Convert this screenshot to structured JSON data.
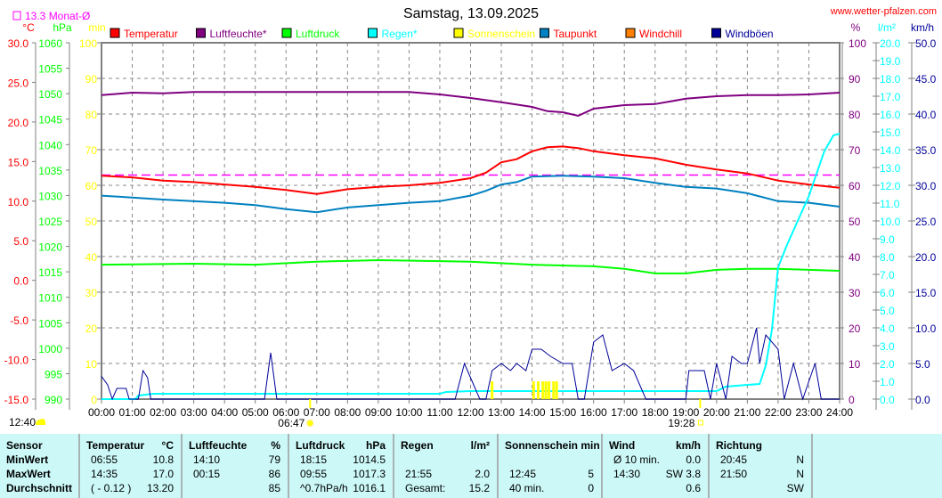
{
  "header": {
    "title": "Samstag, 13.09.2025",
    "site": "www.wetter-pfalzen.com",
    "month_avg_label": "13.3 Monat-Ø",
    "sunrise": "06:47",
    "sunset": "19:28",
    "cloud_time": "12:40"
  },
  "colors": {
    "Temperatur": "#ff0000",
    "Luftfeuchte": "#800080",
    "Luftdruck": "#00ff00",
    "Regen": "#00ffff",
    "Sonnenschein": "#ffff00",
    "Taupunkt": "#0080c0",
    "Windchill": "#ff8000",
    "Windböen": "#000099",
    "month_avg": "#ff00ff"
  },
  "chart_data": {
    "type": "line",
    "title": "Samstag, 13.09.2025",
    "legend": [
      {
        "name": "Temperatur",
        "text_color": "#ff0000",
        "box": "#ff0000"
      },
      {
        "name": "Luftfeuchte*",
        "text_color": "#800080",
        "box": "#800080"
      },
      {
        "name": "Luftdruck",
        "text_color": "#00ff00",
        "box": "#00ff00"
      },
      {
        "name": "Regen*",
        "text_color": "#00ffff",
        "box": "#00ffff"
      },
      {
        "name": "Sonnenschein",
        "text_color": "#ffff00",
        "box": "#ffff00"
      },
      {
        "name": "Taupunkt",
        "text_color": "#ff0000",
        "box": "#0080c0"
      },
      {
        "name": "Windchill",
        "text_color": "#ff0000",
        "box": "#ff8000"
      },
      {
        "name": "Windböen",
        "text_color": "#000099",
        "box": "#000099"
      }
    ],
    "legend_placement": "top",
    "x_ticks": [
      "00:00",
      "01:00",
      "02:00",
      "03:00",
      "04:00",
      "05:00",
      "06:00",
      "07:00",
      "08:00",
      "09:00",
      "10:00",
      "11:00",
      "12:00",
      "13:00",
      "14:00",
      "15:00",
      "16:00",
      "17:00",
      "18:00",
      "19:00",
      "20:00",
      "21:00",
      "22:00",
      "23:00",
      "24:00"
    ],
    "xlim": [
      0,
      24
    ],
    "axes": {
      "celsius": {
        "unit": "°C",
        "range": [
          -15,
          30
        ],
        "ticks": [
          "30.0",
          "25.0",
          "20.0",
          "15.0",
          "10.0",
          "5.0",
          "0.0",
          "-5.0",
          "-10.0",
          "-15.0"
        ],
        "color": "#ff0000"
      },
      "hpa": {
        "unit": "hPa",
        "range": [
          990,
          1060
        ],
        "ticks": [
          "1060",
          "1055",
          "1050",
          "1045",
          "1040",
          "1035",
          "1030",
          "1025",
          "1020",
          "1015",
          "1010",
          "1005",
          "1000",
          "995",
          "990"
        ],
        "color": "#00ff00"
      },
      "min": {
        "unit": "min",
        "range": [
          0,
          100
        ],
        "ticks": [
          "100",
          "90",
          "80",
          "70",
          "60",
          "50",
          "40",
          "30",
          "20",
          "10",
          "0"
        ],
        "color": "#ffff00"
      },
      "percent": {
        "unit": "%",
        "range": [
          0,
          100
        ],
        "ticks": [
          "100",
          "90",
          "80",
          "70",
          "60",
          "50",
          "40",
          "30",
          "20",
          "10",
          "0"
        ],
        "color": "#800080"
      },
      "rain": {
        "unit": "l/m²",
        "range": [
          0,
          20
        ],
        "ticks": [
          "20.0",
          "19.0",
          "18.0",
          "17.0",
          "16.0",
          "15.0",
          "14.0",
          "13.0",
          "12.0",
          "11.0",
          "10.0",
          "9.0",
          "8.0",
          "7.0",
          "6.0",
          "5.0",
          "4.0",
          "3.0",
          "2.0",
          "1.0",
          "0.0"
        ],
        "color": "#00ffff"
      },
      "kmh": {
        "unit": "km/h",
        "range": [
          0,
          50
        ],
        "ticks": [
          "50.0",
          "45.0",
          "40.0",
          "35.0",
          "30.0",
          "25.0",
          "20.0",
          "15.0",
          "10.0",
          "5.0",
          "0.0"
        ],
        "color": "#000099"
      }
    },
    "grid": true,
    "month_avg_temp": 13.3,
    "series": [
      {
        "name": "Temperatur",
        "axis": "celsius",
        "color": "#ff0000",
        "x": [
          0,
          1,
          2,
          3,
          4,
          5,
          6,
          7,
          8,
          9,
          10,
          11,
          12,
          12.5,
          13,
          13.5,
          14,
          14.5,
          15,
          15.5,
          16,
          17,
          18,
          19,
          20,
          21,
          22,
          23,
          24
        ],
        "y": [
          13.2,
          13.0,
          12.6,
          12.4,
          12.1,
          11.8,
          11.4,
          10.9,
          11.5,
          11.8,
          12.0,
          12.3,
          12.9,
          13.6,
          14.9,
          15.3,
          16.3,
          16.8,
          16.9,
          16.7,
          16.3,
          15.8,
          15.4,
          14.6,
          14.0,
          13.5,
          12.6,
          12.1,
          11.7
        ]
      },
      {
        "name": "Luftfeuchte",
        "axis": "percent",
        "color": "#800080",
        "x": [
          0,
          1,
          2,
          3,
          4,
          5,
          6,
          7,
          8,
          9,
          10,
          11,
          12,
          13,
          14,
          14.5,
          15,
          15.5,
          16,
          17,
          18,
          19,
          20,
          21,
          22,
          23,
          24
        ],
        "y": [
          85.3,
          86,
          85.8,
          86.2,
          86.2,
          86.2,
          86.2,
          86.2,
          86.2,
          86.2,
          86.2,
          85.5,
          84.5,
          83.3,
          82,
          80.8,
          80.5,
          79.5,
          81.5,
          82.5,
          82.8,
          84.3,
          85,
          85.3,
          85.3,
          85.5,
          86
        ]
      },
      {
        "name": "Luftdruck",
        "axis": "hpa",
        "color": "#00ff00",
        "x": [
          0,
          3,
          5,
          7,
          9,
          12,
          14,
          16,
          17,
          18,
          19,
          20,
          21,
          22,
          23,
          24
        ],
        "y": [
          1016.4,
          1016.6,
          1016.4,
          1017.0,
          1017.3,
          1017.0,
          1016.4,
          1016.1,
          1015.6,
          1014.7,
          1014.7,
          1015.4,
          1015.6,
          1015.6,
          1015.4,
          1015.2
        ]
      },
      {
        "name": "Taupunkt",
        "axis": "celsius",
        "color": "#0080c0",
        "x": [
          0,
          2,
          4,
          5,
          6,
          7,
          8,
          10,
          11,
          12,
          12.5,
          13,
          13.5,
          14,
          15,
          16,
          17,
          18,
          19,
          20,
          21,
          22,
          23,
          24
        ],
        "y": [
          10.7,
          10.2,
          9.8,
          9.5,
          9.0,
          8.6,
          9.2,
          9.8,
          10.0,
          10.7,
          11.3,
          12.1,
          12.4,
          13.1,
          13.2,
          13.1,
          12.9,
          12.3,
          11.8,
          11.6,
          11.0,
          10.0,
          9.8,
          9.3
        ]
      },
      {
        "name": "Regen",
        "axis": "rain",
        "color": "#00ffff",
        "x": [
          0,
          1.1,
          1.2,
          1.7,
          11,
          11.2,
          12,
          20,
          20.3,
          21,
          21.4,
          21.6,
          21.8,
          22,
          22.3,
          23,
          23.5,
          23.8,
          24
        ],
        "y": [
          0,
          0,
          0.2,
          0.3,
          0.3,
          0.4,
          0.45,
          0.45,
          0.7,
          0.8,
          0.85,
          1.9,
          3.9,
          7.4,
          8.7,
          11.4,
          13.9,
          14.8,
          14.9
        ]
      },
      {
        "name": "Windböen",
        "axis": "kmh",
        "color": "#000099",
        "x": [
          0,
          0.2,
          0.35,
          0.5,
          0.8,
          0.9,
          1.2,
          1.35,
          1.5,
          1.6,
          5.3,
          5.5,
          5.7,
          11.5,
          11.8,
          12,
          12.3,
          12.5,
          12.7,
          13,
          13.3,
          13.5,
          13.8,
          14,
          14.3,
          14.6,
          15,
          15.3,
          15.5,
          15.7,
          16,
          16.3,
          16.6,
          17,
          17.3,
          17.7,
          19,
          19.1,
          19.6,
          19.8,
          20,
          20.3,
          20.5,
          20.8,
          21,
          21.3,
          21.4,
          21.6,
          22,
          22.2,
          22.5,
          22.8,
          23.2,
          23.4,
          24
        ],
        "y": [
          3.2,
          2,
          0,
          1.5,
          1.5,
          0,
          0,
          4,
          3,
          0,
          0,
          6.5,
          0,
          0,
          5,
          3,
          0,
          0,
          4,
          5,
          4,
          5,
          4,
          7,
          7,
          6,
          5,
          5,
          0,
          0,
          8,
          9,
          4,
          5,
          4,
          0,
          0,
          4,
          4,
          0,
          5,
          0,
          6,
          5,
          5,
          10,
          5,
          9,
          7,
          0,
          5,
          0,
          5,
          0,
          0
        ]
      },
      {
        "name": "Sonnenschein",
        "axis": "min",
        "color": "#ffff00",
        "type": "bar",
        "x": [
          12.7,
          14.05,
          14.2,
          14.35,
          14.45,
          14.55,
          14.7,
          14.8
        ],
        "y": [
          5,
          5,
          5,
          5,
          5,
          5,
          5,
          5
        ]
      }
    ]
  },
  "table": {
    "headers": {
      "sensor": "Sensor",
      "temp": "Temperatur",
      "temp_unit": "°C",
      "hum": "Luftfeuchte",
      "hum_unit": "%",
      "press": "Luftdruck",
      "press_unit": "hPa",
      "rain": "Regen",
      "rain_unit": "l/m²",
      "sun": "Sonnenschein min",
      "wind": "Wind",
      "wind_unit": "km/h",
      "dir": "Richtung"
    },
    "rows": [
      {
        "label": "MinWert",
        "temp_t": "06:55",
        "temp_v": "10.8",
        "hum_t": "14:10",
        "hum_v": "79",
        "press_t": "18:15",
        "press_v": "1014.5",
        "rain_t": "",
        "rain_v": "",
        "sun_t": "",
        "sun_v": "",
        "wind_t": "Ø 10 min.",
        "wind_v": "0.0",
        "dir_t": "20:45",
        "dir_v": "N"
      },
      {
        "label": "MaxWert",
        "temp_t": "14:35",
        "temp_v": "17.0",
        "hum_t": "00:15",
        "hum_v": "86",
        "press_t": "09:55",
        "press_v": "1017.3",
        "rain_t": "21:55",
        "rain_v": "2.0",
        "sun_t": "12:45",
        "sun_v": "5",
        "wind_t": "14:30",
        "wind_v": "SW 3.8",
        "dir_t": "21:50",
        "dir_v": "N"
      },
      {
        "label": "Durchschnitt",
        "temp_t": "( - 0.12 )",
        "temp_v": "13.20",
        "hum_t": "",
        "hum_v": "85",
        "press_t": "^0.7hPa/h",
        "press_v": "1016.1",
        "rain_t": "Gesamt:",
        "rain_v": "15.2",
        "sun_t": "40 min.",
        "sun_v": "0",
        "wind_t": "",
        "wind_v": "0.6",
        "dir_t": "",
        "dir_v": "SW"
      }
    ]
  }
}
